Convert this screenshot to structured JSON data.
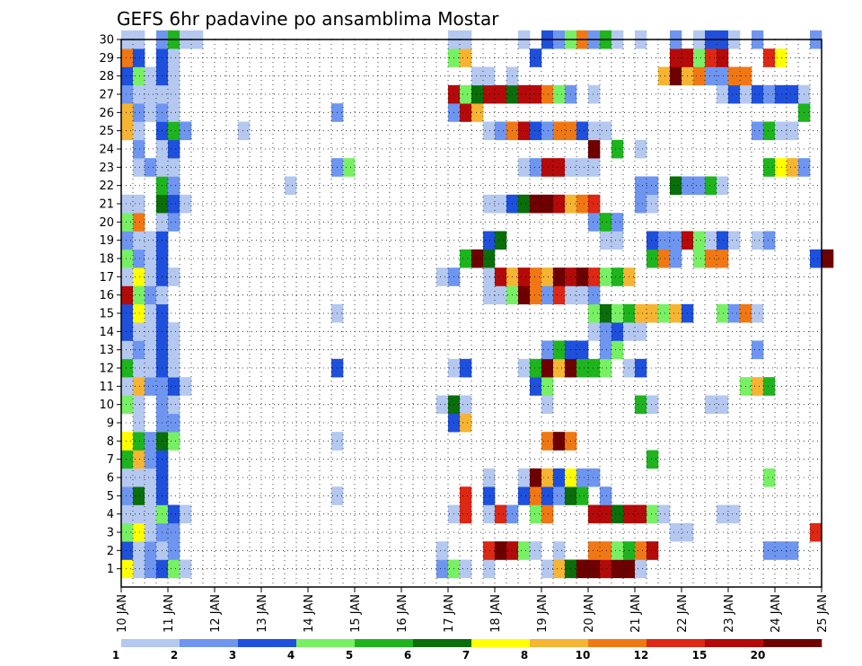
{
  "chart_data": {
    "type": "heatmap",
    "title": "GEFS 6hr padavine po ansamblima Mostar",
    "y_tick_labels": [
      "1",
      "2",
      "3",
      "4",
      "5",
      "6",
      "7",
      "8",
      "9",
      "10",
      "11",
      "12",
      "13",
      "14",
      "15",
      "16",
      "17",
      "18",
      "19",
      "20",
      "21",
      "22",
      "23",
      "24",
      "25",
      "26",
      "27",
      "28",
      "29",
      "30"
    ],
    "x_tick_labels": [
      "10 JAN",
      "11 JAN",
      "12 JAN",
      "13 JAN",
      "14 JAN",
      "15 JAN",
      "16 JAN",
      "17 JAN",
      "18 JAN",
      "19 JAN",
      "20 JAN",
      "21 JAN",
      "22 JAN",
      "23 JAN",
      "24 JAN",
      "25 JAN"
    ],
    "x_axis": {
      "start": "2021-01-10 00Z",
      "end": "2021-01-25 00Z",
      "step": "6hr"
    },
    "y_range": [
      1,
      30
    ],
    "grid": "dotted",
    "colorbar": {
      "placement": "bottom",
      "levels": [
        "1",
        "2",
        "3",
        "4",
        "5",
        "6",
        "7",
        "8",
        "10",
        "12",
        "15",
        "20"
      ],
      "colors": [
        "#b4c8f0",
        "#6e96f0",
        "#1e50dc",
        "#78f064",
        "#1eb41e",
        "#0a6e0a",
        "#ffff00",
        "#f5b432",
        "#f07814",
        "#dc2814",
        "#b40a0a",
        "#6e0000"
      ]
    },
    "cells": [
      {
        "member": 1,
        "values": {
          "10 JAN 06Z": 7,
          "10 JAN 12Z": 1,
          "10 JAN 18Z": 2,
          "11 JAN 00Z": 3,
          "11 JAN 06Z": 4,
          "11 JAN 12Z": 1,
          "17 JAN 00Z": 2,
          "17 JAN 06Z": 4,
          "17 JAN 12Z": 1,
          "18 JAN 00Z": 1,
          "19 JAN 06Z": 1,
          "19 JAN 12Z": 8,
          "19 JAN 18Z": 6,
          "20 JAN 00Z": 20,
          "20 JAN 06Z": 20,
          "20 JAN 12Z": 15,
          "20 JAN 18Z": 20,
          "21 JAN 00Z": 20,
          "21 JAN 06Z": 1
        }
      },
      {
        "member": 2,
        "values": {
          "10 JAN 06Z": 3,
          "10 JAN 12Z": 1,
          "10 JAN 18Z": 2,
          "11 JAN 00Z": 1,
          "11 JAN 06Z": 2,
          "17 JAN 00Z": 1,
          "18 JAN 00Z": 12,
          "18 JAN 06Z": 20,
          "18 JAN 12Z": 15,
          "18 JAN 18Z": 4,
          "19 JAN 00Z": 1,
          "19 JAN 12Z": 1,
          "20 JAN 06Z": 10,
          "20 JAN 12Z": 10,
          "20 JAN 18Z": 4,
          "21 JAN 00Z": 5,
          "21 JAN 06Z": 10,
          "21 JAN 12Z": 15,
          "24 JAN 00Z": 2,
          "24 JAN 06Z": 2,
          "24 JAN 12Z": 2
        }
      },
      {
        "member": 3,
        "values": {
          "10 JAN 06Z": 4,
          "10 JAN 12Z": 7,
          "10 JAN 18Z": 1,
          "11 JAN 00Z": 2,
          "11 JAN 06Z": 2,
          "22 JAN 00Z": 1,
          "22 JAN 06Z": 1,
          "25 JAN 00Z": 12
        }
      },
      {
        "member": 4,
        "values": {
          "10 JAN 06Z": 1,
          "10 JAN 12Z": 1,
          "10 JAN 18Z": 1,
          "11 JAN 00Z": 4,
          "11 JAN 06Z": 3,
          "11 JAN 12Z": 1,
          "17 JAN 06Z": 1,
          "17 JAN 12Z": 12,
          "18 JAN 00Z": 1,
          "18 JAN 06Z": 12,
          "18 JAN 12Z": 2,
          "19 JAN 00Z": 4,
          "19 JAN 06Z": 10,
          "20 JAN 06Z": 15,
          "20 JAN 12Z": 15,
          "20 JAN 18Z": 6,
          "21 JAN 00Z": 15,
          "21 JAN 06Z": 15,
          "21 JAN 12Z": 4,
          "21 JAN 18Z": 1,
          "23 JAN 00Z": 1,
          "23 JAN 06Z": 1
        }
      },
      {
        "member": 5,
        "values": {
          "10 JAN 06Z": 2,
          "10 JAN 12Z": 6,
          "10 JAN 18Z": 1,
          "11 JAN 00Z": 3,
          "14 JAN 18Z": 1,
          "17 JAN 12Z": 12,
          "18 JAN 00Z": 3,
          "18 JAN 18Z": 3,
          "19 JAN 00Z": 10,
          "19 JAN 06Z": 3,
          "19 JAN 12Z": 2,
          "19 JAN 18Z": 6,
          "20 JAN 00Z": 5,
          "20 JAN 12Z": 2
        }
      },
      {
        "member": 6,
        "values": {
          "10 JAN 06Z": 1,
          "10 JAN 12Z": 1,
          "10 JAN 18Z": 1,
          "11 JAN 00Z": 3,
          "18 JAN 00Z": 1,
          "18 JAN 18Z": 1,
          "19 JAN 00Z": 20,
          "19 JAN 06Z": 8,
          "19 JAN 12Z": 3,
          "19 JAN 18Z": 7,
          "20 JAN 00Z": 2,
          "20 JAN 06Z": 2,
          "24 JAN 00Z": 4
        }
      },
      {
        "member": 7,
        "values": {
          "10 JAN 06Z": 5,
          "10 JAN 12Z": 8,
          "10 JAN 18Z": 2,
          "11 JAN 00Z": 3,
          "21 JAN 12Z": 5
        }
      },
      {
        "member": 8,
        "values": {
          "10 JAN 06Z": 7,
          "10 JAN 12Z": 5,
          "10 JAN 18Z": 2,
          "11 JAN 00Z": 6,
          "11 JAN 06Z": 4,
          "14 JAN 18Z": 1,
          "19 JAN 06Z": 10,
          "19 JAN 12Z": 20,
          "19 JAN 18Z": 10
        }
      },
      {
        "member": 9,
        "values": {
          "10 JAN 12Z": 1,
          "11 JAN 00Z": 2,
          "11 JAN 06Z": 2,
          "17 JAN 06Z": 3,
          "17 JAN 12Z": 8
        }
      },
      {
        "member": 10,
        "values": {
          "10 JAN 06Z": 4,
          "10 JAN 12Z": 1,
          "11 JAN 00Z": 2,
          "11 JAN 06Z": 1,
          "17 JAN 00Z": 1,
          "17 JAN 06Z": 6,
          "17 JAN 12Z": 1,
          "19 JAN 06Z": 1,
          "21 JAN 06Z": 5,
          "21 JAN 12Z": 1,
          "22 JAN 18Z": 1,
          "23 JAN 00Z": 1
        }
      },
      {
        "member": 11,
        "values": {
          "10 JAN 06Z": 1,
          "10 JAN 12Z": 8,
          "10 JAN 18Z": 2,
          "11 JAN 00Z": 2,
          "11 JAN 06Z": 3,
          "11 JAN 12Z": 1,
          "19 JAN 00Z": 3,
          "19 JAN 06Z": 4,
          "23 JAN 12Z": 4,
          "23 JAN 18Z": 8,
          "24 JAN 00Z": 5
        }
      },
      {
        "member": 12,
        "values": {
          "10 JAN 06Z": 5,
          "10 JAN 12Z": 1,
          "10 JAN 18Z": 1,
          "11 JAN 00Z": 3,
          "11 JAN 06Z": 1,
          "14 JAN 18Z": 3,
          "17 JAN 06Z": 1,
          "17 JAN 12Z": 3,
          "18 JAN 18Z": 1,
          "19 JAN 00Z": 5,
          "19 JAN 06Z": 20,
          "19 JAN 12Z": 8,
          "19 JAN 18Z": 20,
          "20 JAN 00Z": 5,
          "20 JAN 06Z": 5,
          "20 JAN 12Z": 4,
          "21 JAN 00Z": 1,
          "21 JAN 06Z": 3
        }
      },
      {
        "member": 13,
        "values": {
          "10 JAN 06Z": 1,
          "10 JAN 12Z": 2,
          "10 JAN 18Z": 1,
          "11 JAN 00Z": 3,
          "11 JAN 06Z": 1,
          "19 JAN 06Z": 2,
          "19 JAN 12Z": 5,
          "19 JAN 18Z": 3,
          "20 JAN 00Z": 3,
          "20 JAN 12Z": 2,
          "20 JAN 18Z": 4,
          "23 JAN 18Z": 2
        }
      },
      {
        "member": 14,
        "values": {
          "10 JAN 06Z": 3,
          "10 JAN 12Z": 1,
          "10 JAN 18Z": 1,
          "11 JAN 00Z": 3,
          "11 JAN 06Z": 1,
          "20 JAN 06Z": 1,
          "20 JAN 12Z": 2,
          "20 JAN 18Z": 3,
          "21 JAN 00Z": 1,
          "21 JAN 06Z": 1
        }
      },
      {
        "member": 15,
        "values": {
          "10 JAN 06Z": 3,
          "10 JAN 12Z": 7,
          "10 JAN 18Z": 1,
          "11 JAN 00Z": 3,
          "14 JAN 18Z": 1,
          "20 JAN 06Z": 4,
          "20 JAN 12Z": 6,
          "20 JAN 18Z": 4,
          "21 JAN 00Z": 5,
          "21 JAN 06Z": 8,
          "21 JAN 12Z": 8,
          "21 JAN 18Z": 4,
          "22 JAN 00Z": 8,
          "22 JAN 06Z": 3,
          "23 JAN 00Z": 4,
          "23 JAN 06Z": 2,
          "23 JAN 12Z": 10,
          "23 JAN 18Z": 1
        }
      },
      {
        "member": 16,
        "values": {
          "10 JAN 06Z": 15,
          "10 JAN 12Z": 4,
          "10 JAN 18Z": 2,
          "11 JAN 00Z": 1,
          "18 JAN 00Z": 1,
          "18 JAN 06Z": 1,
          "18 JAN 12Z": 4,
          "18 JAN 18Z": 20,
          "19 JAN 00Z": 10,
          "19 JAN 06Z": 2,
          "19 JAN 12Z": 12,
          "19 JAN 18Z": 1,
          "20 JAN 00Z": 1,
          "20 JAN 06Z": 2
        }
      },
      {
        "member": 17,
        "values": {
          "10 JAN 06Z": 1,
          "10 JAN 12Z": 7,
          "10 JAN 18Z": 1,
          "11 JAN 00Z": 3,
          "11 JAN 06Z": 1,
          "17 JAN 00Z": 1,
          "17 JAN 06Z": 2,
          "18 JAN 00Z": 1,
          "18 JAN 06Z": 15,
          "18 JAN 12Z": 8,
          "18 JAN 18Z": 15,
          "19 JAN 00Z": 10,
          "19 JAN 06Z": 8,
          "19 JAN 12Z": 20,
          "19 JAN 18Z": 15,
          "20 JAN 00Z": 20,
          "20 JAN 06Z": 12,
          "20 JAN 12Z": 4,
          "20 JAN 18Z": 5,
          "21 JAN 00Z": 8
        }
      },
      {
        "member": 18,
        "values": {
          "10 JAN 06Z": 4,
          "10 JAN 12Z": 2,
          "10 JAN 18Z": 1,
          "11 JAN 00Z": 3,
          "17 JAN 12Z": 5,
          "17 JAN 18Z": 20,
          "18 JAN 00Z": 6,
          "21 JAN 12Z": 5,
          "21 JAN 18Z": 10,
          "22 JAN 00Z": 2,
          "22 JAN 12Z": 4,
          "22 JAN 18Z": 10,
          "23 JAN 00Z": 10,
          "25 JAN 00Z": 3,
          "25 JAN 06Z": 20
        }
      },
      {
        "member": 19,
        "values": {
          "10 JAN 06Z": 2,
          "10 JAN 12Z": 1,
          "10 JAN 18Z": 1,
          "11 JAN 00Z": 3,
          "18 JAN 00Z": 3,
          "18 JAN 06Z": 6,
          "20 JAN 12Z": 1,
          "20 JAN 18Z": 1,
          "21 JAN 12Z": 3,
          "21 JAN 18Z": 2,
          "22 JAN 00Z": 2,
          "22 JAN 06Z": 15,
          "22 JAN 12Z": 4,
          "22 JAN 18Z": 1,
          "23 JAN 00Z": 3,
          "23 JAN 06Z": 1,
          "23 JAN 18Z": 1,
          "24 JAN 00Z": 2
        }
      },
      {
        "member": 20,
        "values": {
          "10 JAN 06Z": 4,
          "10 JAN 12Z": 10,
          "11 JAN 00Z": 1,
          "11 JAN 06Z": 2,
          "20 JAN 06Z": 2,
          "20 JAN 12Z": 5,
          "20 JAN 18Z": 2
        }
      },
      {
        "member": 21,
        "values": {
          "10 JAN 06Z": 1,
          "10 JAN 12Z": 1,
          "11 JAN 00Z": 6,
          "11 JAN 06Z": 3,
          "11 JAN 12Z": 1,
          "18 JAN 00Z": 1,
          "18 JAN 06Z": 1,
          "18 JAN 12Z": 3,
          "18 JAN 18Z": 6,
          "19 JAN 00Z": 20,
          "19 JAN 06Z": 20,
          "19 JAN 12Z": 15,
          "19 JAN 18Z": 8,
          "20 JAN 00Z": 10,
          "20 JAN 06Z": 12,
          "21 JAN 06Z": 2,
          "21 JAN 12Z": 1
        }
      },
      {
        "member": 22,
        "values": {
          "11 JAN 00Z": 5,
          "11 JAN 06Z": 2,
          "13 JAN 18Z": 1,
          "21 JAN 06Z": 2,
          "21 JAN 12Z": 2,
          "22 JAN 00Z": 6,
          "22 JAN 06Z": 2,
          "22 JAN 12Z": 2,
          "22 JAN 18Z": 5,
          "23 JAN 00Z": 1
        }
      },
      {
        "member": 23,
        "values": {
          "10 JAN 12Z": 1,
          "10 JAN 18Z": 2,
          "11 JAN 00Z": 1,
          "11 JAN 06Z": 1,
          "14 JAN 18Z": 2,
          "15 JAN 00Z": 4,
          "18 JAN 18Z": 1,
          "19 JAN 00Z": 2,
          "19 JAN 06Z": 15,
          "19 JAN 12Z": 15,
          "19 JAN 18Z": 1,
          "20 JAN 00Z": 1,
          "20 JAN 06Z": 1,
          "24 JAN 00Z": 5,
          "24 JAN 06Z": 7,
          "24 JAN 12Z": 8,
          "24 JAN 18Z": 2
        }
      },
      {
        "member": 24,
        "values": {
          "10 JAN 12Z": 2,
          "11 JAN 00Z": 1,
          "11 JAN 06Z": 3,
          "20 JAN 06Z": 20,
          "20 JAN 18Z": 5,
          "21 JAN 06Z": 1
        }
      },
      {
        "member": 25,
        "values": {
          "10 JAN 06Z": 8,
          "10 JAN 12Z": 1,
          "11 JAN 00Z": 3,
          "11 JAN 06Z": 5,
          "11 JAN 12Z": 2,
          "12 JAN 18Z": 1,
          "18 JAN 00Z": 1,
          "18 JAN 06Z": 2,
          "18 JAN 12Z": 10,
          "18 JAN 18Z": 15,
          "19 JAN 00Z": 3,
          "19 JAN 06Z": 2,
          "19 JAN 12Z": 10,
          "19 JAN 18Z": 10,
          "20 JAN 00Z": 3,
          "20 JAN 06Z": 1,
          "20 JAN 12Z": 1,
          "23 JAN 18Z": 2,
          "24 JAN 00Z": 5,
          "24 JAN 06Z": 1,
          "24 JAN 12Z": 1
        }
      },
      {
        "member": 26,
        "values": {
          "10 JAN 06Z": 8,
          "10 JAN 12Z": 2,
          "10 JAN 18Z": 1,
          "11 JAN 00Z": 2,
          "11 JAN 06Z": 1,
          "14 JAN 18Z": 2,
          "17 JAN 06Z": 2,
          "17 JAN 12Z": 15,
          "17 JAN 18Z": 8,
          "24 JAN 18Z": 5
        }
      },
      {
        "member": 27,
        "values": {
          "10 JAN 06Z": 2,
          "10 JAN 12Z": 1,
          "10 JAN 18Z": 1,
          "11 JAN 00Z": 1,
          "11 JAN 06Z": 1,
          "17 JAN 06Z": 15,
          "17 JAN 12Z": 4,
          "17 JAN 18Z": 6,
          "18 JAN 00Z": 15,
          "18 JAN 06Z": 15,
          "18 JAN 12Z": 6,
          "18 JAN 18Z": 15,
          "19 JAN 00Z": 15,
          "19 JAN 06Z": 10,
          "19 JAN 12Z": 4,
          "19 JAN 18Z": 2,
          "20 JAN 06Z": 1,
          "23 JAN 00Z": 1,
          "23 JAN 06Z": 3,
          "23 JAN 12Z": 1,
          "23 JAN 18Z": 3,
          "24 JAN 00Z": 2,
          "24 JAN 06Z": 3,
          "24 JAN 12Z": 3,
          "24 JAN 18Z": 1
        }
      },
      {
        "member": 28,
        "values": {
          "10 JAN 06Z": 3,
          "10 JAN 12Z": 4,
          "10 JAN 18Z": 1,
          "11 JAN 00Z": 3,
          "11 JAN 06Z": 1,
          "17 JAN 18Z": 1,
          "18 JAN 00Z": 1,
          "18 JAN 12Z": 1,
          "21 JAN 18Z": 8,
          "22 JAN 00Z": 20,
          "22 JAN 06Z": 8,
          "22 JAN 12Z": 10,
          "22 JAN 18Z": 2,
          "23 JAN 00Z": 2,
          "23 JAN 06Z": 10,
          "23 JAN 12Z": 10
        }
      },
      {
        "member": 29,
        "values": {
          "10 JAN 06Z": 10,
          "10 JAN 12Z": 3,
          "11 JAN 00Z": 3,
          "11 JAN 06Z": 1,
          "17 JAN 06Z": 4,
          "17 JAN 12Z": 8,
          "19 JAN 00Z": 3,
          "22 JAN 00Z": 15,
          "22 JAN 06Z": 15,
          "22 JAN 12Z": 4,
          "22 JAN 18Z": 12,
          "23 JAN 00Z": 15,
          "24 JAN 00Z": 12,
          "24 JAN 06Z": 7
        }
      },
      {
        "member": 30,
        "values": {
          "10 JAN 06Z": 1,
          "10 JAN 12Z": 1,
          "11 JAN 00Z": 2,
          "11 JAN 06Z": 5,
          "11 JAN 12Z": 1,
          "11 JAN 18Z": 1,
          "17 JAN 06Z": 1,
          "17 JAN 12Z": 1,
          "18 JAN 18Z": 1,
          "19 JAN 06Z": 3,
          "19 JAN 12Z": 2,
          "19 JAN 18Z": 4,
          "20 JAN 00Z": 10,
          "20 JAN 06Z": 2,
          "20 JAN 12Z": 5,
          "20 JAN 18Z": 1,
          "21 JAN 06Z": 1,
          "22 JAN 00Z": 2,
          "22 JAN 12Z": 1,
          "22 JAN 18Z": 3,
          "23 JAN 00Z": 3,
          "23 JAN 06Z": 1,
          "23 JAN 18Z": 2,
          "25 JAN 00Z": 2
        }
      }
    ]
  }
}
